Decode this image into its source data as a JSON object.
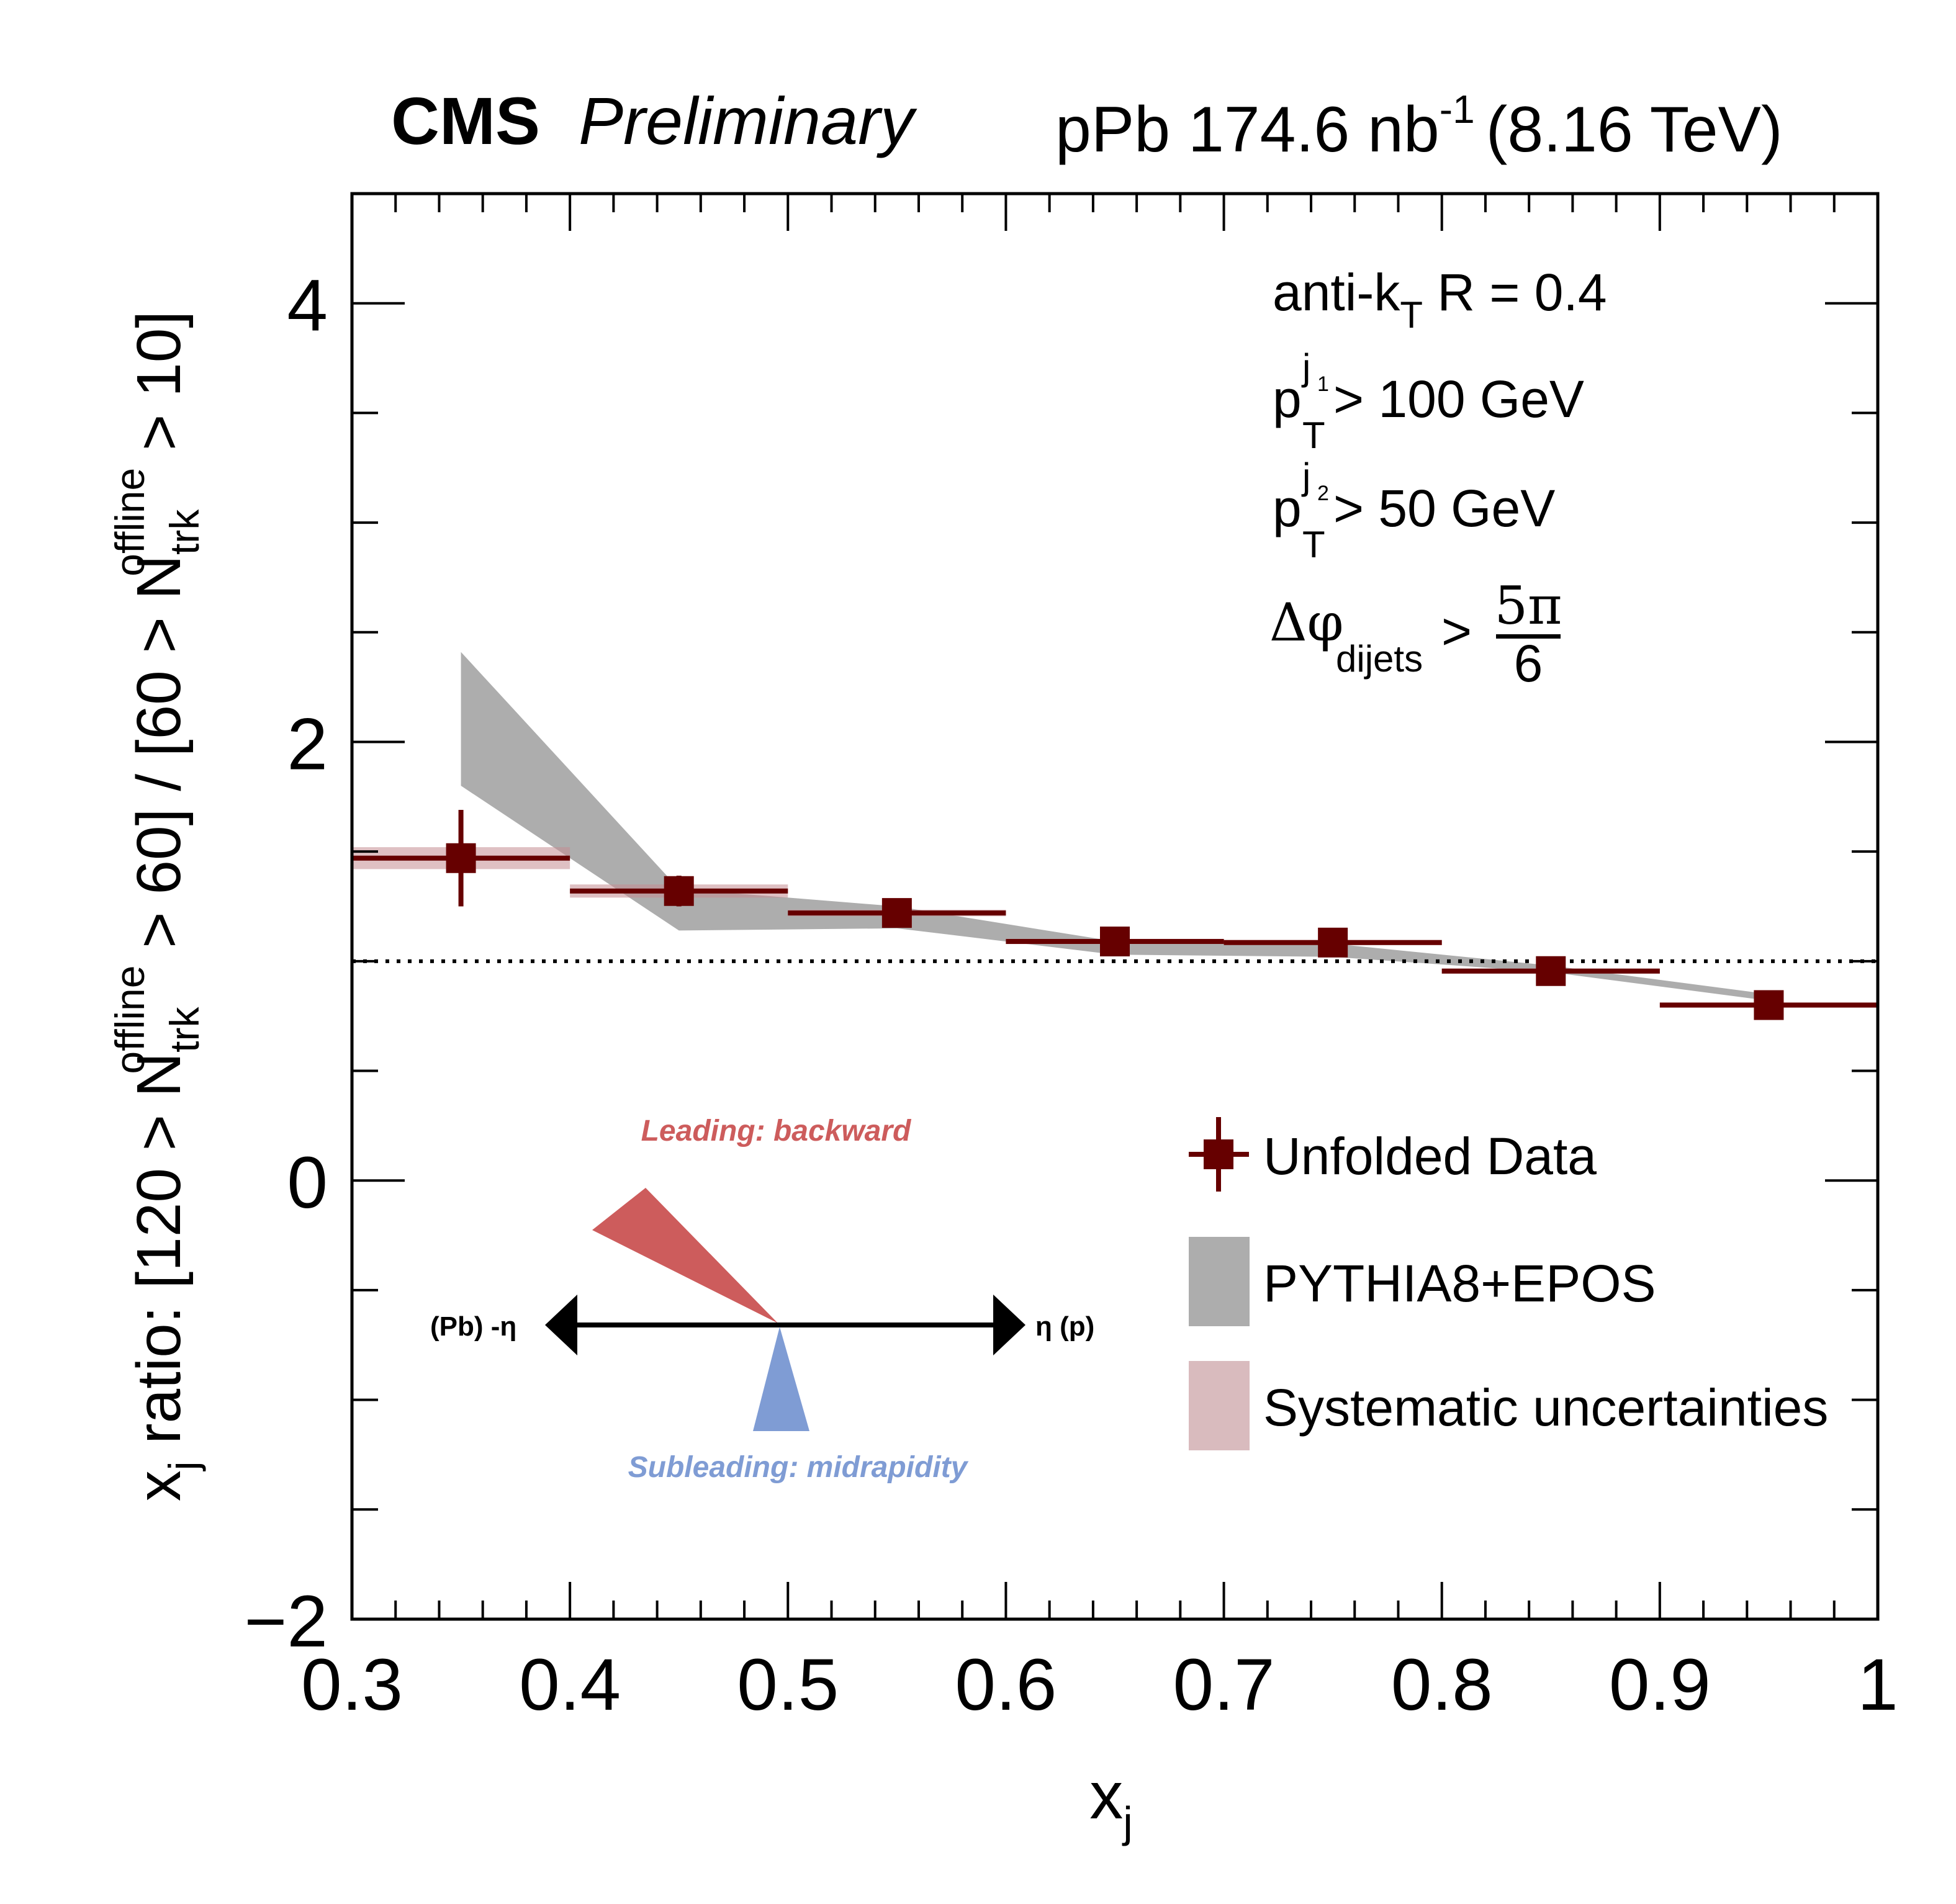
{
  "header": {
    "experiment": "CMS",
    "status": "Preliminary",
    "lumi_prefix": "pPb 174.6 nb",
    "lumi_exp": "-1",
    "energy": "(8.16 TeV)"
  },
  "annotations": {
    "algo_main": "anti-k",
    "algo_sub": "T",
    "algo_rest": " R = 0.4",
    "pt1_base": "p",
    "pt1_sub": "T",
    "pt1_sup": "j",
    "pt1_supsub": "1",
    "pt1_rest": " > 100 GeV",
    "pt2_base": "p",
    "pt2_sub": "T",
    "pt2_sup": "j",
    "pt2_supsub": "2",
    "pt2_rest": " > 50 GeV",
    "dphi_base": "Δφ",
    "dphi_sub": "dijets",
    "dphi_gt": ">",
    "dphi_num": "5π",
    "dphi_den": "6"
  },
  "inset": {
    "leading_label": "Leading: backward",
    "subleading_label": "Subleading: midrapidity",
    "left_label": "(Pb) -η",
    "right_label": "η (p)",
    "leading_color": "#cd5c5c",
    "subleading_color": "#7f9cd4"
  },
  "legend": [
    {
      "label": "Unfolded Data",
      "type": "marker",
      "color": "#660000"
    },
    {
      "label": "PYTHIA8+EPOS",
      "type": "fill",
      "color": "#adadad"
    },
    {
      "label": "Systematic uncertainties",
      "type": "fill",
      "color": "#d9bbbe"
    }
  ],
  "chart_data": {
    "type": "scatter",
    "title": "",
    "xlabel": "x_j",
    "ylabel": "x_j ratio: [120 > N_trk^offline > 60] / [60 > N_trk^offline > 10]",
    "xlim": [
      0.3,
      1.0
    ],
    "ylim": [
      -2,
      4.5
    ],
    "x_ticks": [
      "0.3",
      "0.4",
      "0.5",
      "0.6",
      "0.7",
      "0.8",
      "0.9",
      "1"
    ],
    "y_ticks": [
      "−2",
      "0",
      "2",
      "4"
    ],
    "reference_line": 1.0,
    "series": [
      {
        "name": "Unfolded Data",
        "color": "#660000",
        "x": [
          0.35,
          0.45,
          0.55,
          0.65,
          0.75,
          0.85,
          0.95
        ],
        "x_halfwidth": [
          0.05,
          0.05,
          0.05,
          0.05,
          0.05,
          0.05,
          0.05
        ],
        "y": [
          1.47,
          1.32,
          1.22,
          1.09,
          1.085,
          0.955,
          0.8
        ],
        "stat_err": [
          0.22,
          0.07,
          0.02,
          0.02,
          0.02,
          0.02,
          0.02
        ],
        "sys_err": [
          0.05,
          0.03,
          0.015,
          0.012,
          0.012,
          0.012,
          0.012
        ]
      },
      {
        "name": "PYTHIA8+EPOS",
        "color": "#adadad",
        "x": [
          0.35,
          0.45,
          0.55,
          0.65,
          0.75,
          0.85,
          0.95
        ],
        "y_low": [
          1.8,
          1.14,
          1.15,
          1.03,
          1.02,
          0.95,
          0.82
        ],
        "y_high": [
          2.41,
          1.33,
          1.25,
          1.09,
          1.08,
          0.98,
          0.85
        ]
      }
    ]
  }
}
